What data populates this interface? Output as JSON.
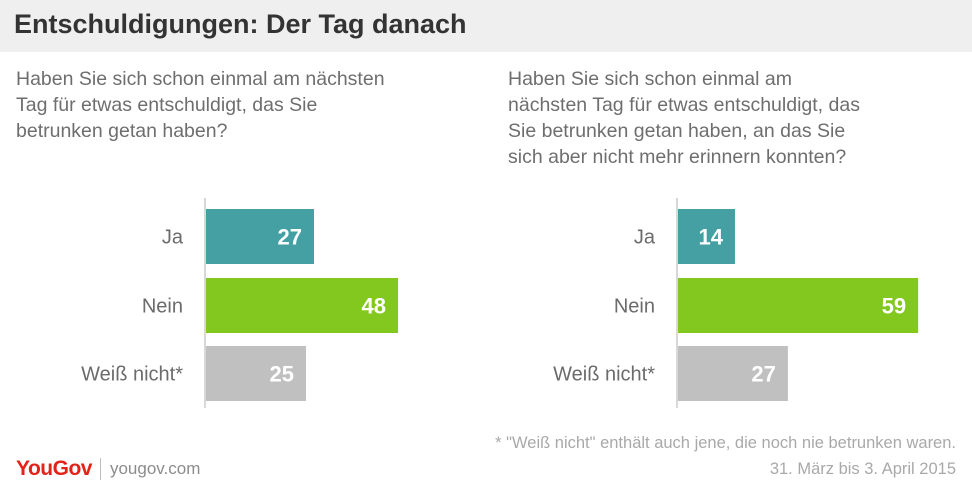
{
  "title": "Entschuldigungen:  Der Tag danach",
  "colors": {
    "ja": "#45a0a3",
    "nein": "#82c81e",
    "weiss_nicht": "#c0c0c0",
    "label_text": "#ffffff",
    "axis": "#cccccc"
  },
  "chart_data": [
    {
      "type": "bar",
      "orientation": "horizontal",
      "question": "Haben Sie sich schon einmal am nächsten\nTag für etwas entschuldigt, das Sie\nbetrunken getan haben?",
      "categories": [
        "Ja",
        "Nein",
        "Weiß nicht*"
      ],
      "values": [
        27,
        48,
        25
      ]
    },
    {
      "type": "bar",
      "orientation": "horizontal",
      "question": "Haben Sie sich schon einmal am\nnächsten Tag für etwas entschuldigt, das\nSie betrunken getan haben, an das Sie\nsich aber nicht mehr erinnern konnten?",
      "categories": [
        "Ja",
        "Nein",
        "Weiß nicht*"
      ],
      "values": [
        14,
        59,
        27
      ]
    }
  ],
  "footnote": "* \"Weiß nicht\" enthält auch jene, die noch nie betrunken waren.",
  "date_range": "31. März bis 3. April 2015",
  "brand": {
    "logo": "YouGov",
    "url": "yougov.com"
  }
}
